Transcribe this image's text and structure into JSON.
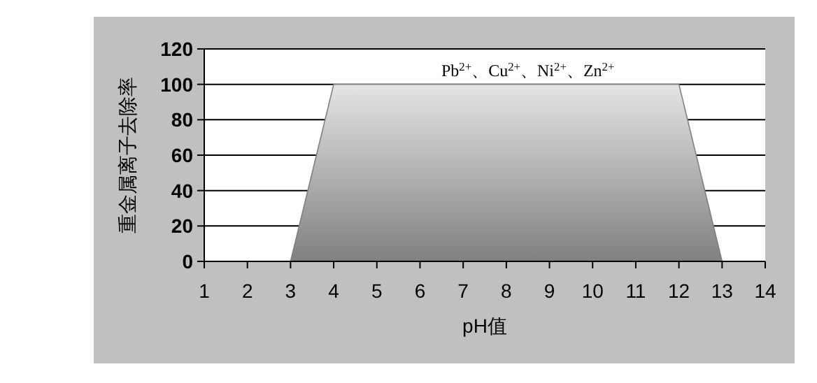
{
  "chart_data": {
    "type": "area",
    "xlabel": "pH值",
    "ylabel": "重金属离子去除率",
    "x": [
      1,
      2,
      3,
      4,
      5,
      6,
      7,
      8,
      9,
      10,
      11,
      12,
      13,
      14
    ],
    "series": [
      {
        "color": "#808080",
        "values": [
          0,
          0,
          0,
          100,
          100,
          100,
          100,
          100,
          100,
          100,
          100,
          100,
          0,
          0
        ]
      }
    ],
    "xlim": [
      1,
      14
    ],
    "xticks": [
      1,
      2,
      3,
      4,
      5,
      6,
      7,
      8,
      9,
      10,
      11,
      12,
      13,
      14
    ],
    "ylim": [
      0,
      120
    ],
    "yticks": [
      0,
      20,
      40,
      60,
      80,
      100,
      120
    ],
    "grid": "y",
    "annotations": [
      {
        "text": "Pb$^{2+}$、Cu$^{2+}$、Ni$^{2+}$、Zn$^{2+}$",
        "x": 8.5,
        "y": 100
      }
    ]
  }
}
